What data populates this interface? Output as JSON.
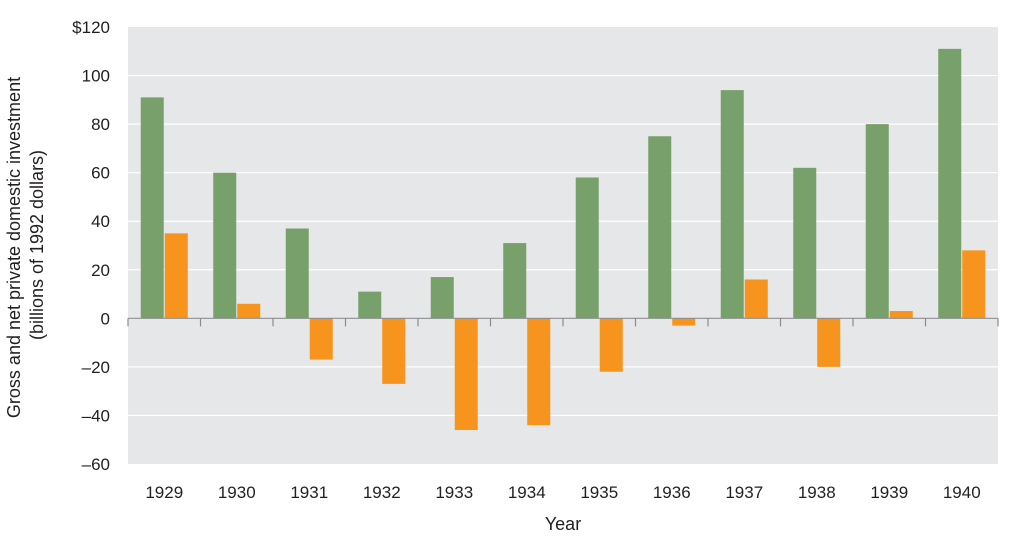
{
  "chart_data": {
    "type": "bar",
    "categories": [
      "1929",
      "1930",
      "1931",
      "1932",
      "1933",
      "1934",
      "1935",
      "1936",
      "1937",
      "1938",
      "1939",
      "1940"
    ],
    "series": [
      {
        "color": "#77a06a",
        "values": [
          91,
          60,
          37,
          11,
          17,
          31,
          58,
          75,
          94,
          62,
          80,
          111
        ]
      },
      {
        "color": "#f7941d",
        "values": [
          35,
          6,
          -17,
          -27,
          -46,
          -44,
          -22,
          -3,
          16,
          -20,
          3,
          28
        ]
      }
    ],
    "title": "",
    "xlabel": "Year",
    "ylabel_lines": [
      "Gross and net private domestic investment",
      "(billions of 1992 dollars)"
    ],
    "ylim": [
      -60,
      120
    ],
    "yticks": [
      {
        "value": 120,
        "label": "$120"
      },
      {
        "value": 100,
        "label": "100"
      },
      {
        "value": 80,
        "label": "80"
      },
      {
        "value": 60,
        "label": "60"
      },
      {
        "value": 40,
        "label": "40"
      },
      {
        "value": 20,
        "label": "20"
      },
      {
        "value": 0,
        "label": "0"
      },
      {
        "value": -20,
        "label": "–20"
      },
      {
        "value": -40,
        "label": "–40"
      },
      {
        "value": -60,
        "label": "–60"
      }
    ],
    "grid": true,
    "legend": "none",
    "background_color": "#e6e7e8",
    "gridline_color": "#ffffff"
  }
}
